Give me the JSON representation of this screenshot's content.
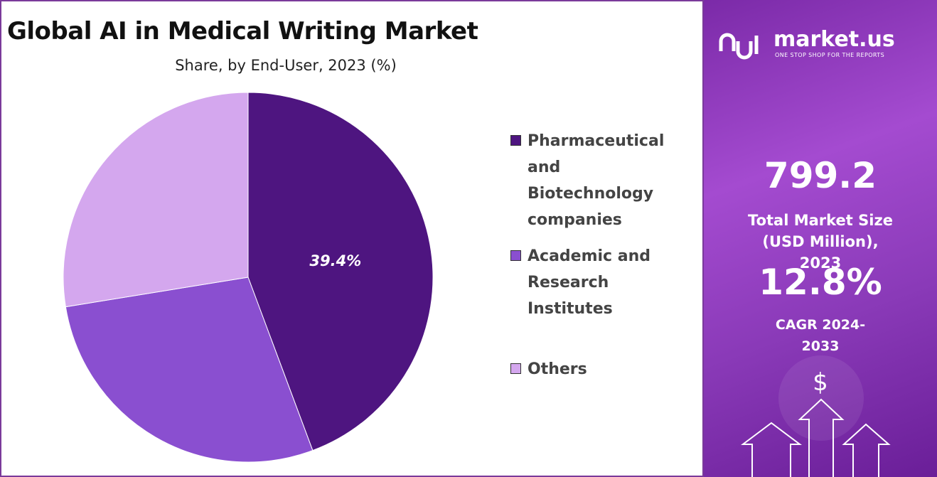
{
  "chart_data": {
    "type": "pie",
    "title": "Global AI in Medical Writing Market",
    "subtitle": "Share, by End-User, 2023 (%)",
    "categories": [
      "Pharmaceutical and Biotechnology companies",
      "Academic and Research Institutes",
      "Others"
    ],
    "values": [
      39.4,
      25,
      24.5
    ],
    "value_labels": [
      "39.4%",
      null,
      null
    ],
    "colors": [
      "#4e1580",
      "#8a4fd0",
      "#d4a7ee"
    ],
    "legend": "right"
  },
  "sidebar": {
    "brand": "market.us",
    "tagline": "ONE STOP SHOP FOR THE REPORTS",
    "market_size": "799.2",
    "market_size_label": "Total Market Size (USD Million), 2023",
    "cagr": "12.8%",
    "cagr_label": "CAGR 2024-2033",
    "currency_symbol": "$"
  }
}
